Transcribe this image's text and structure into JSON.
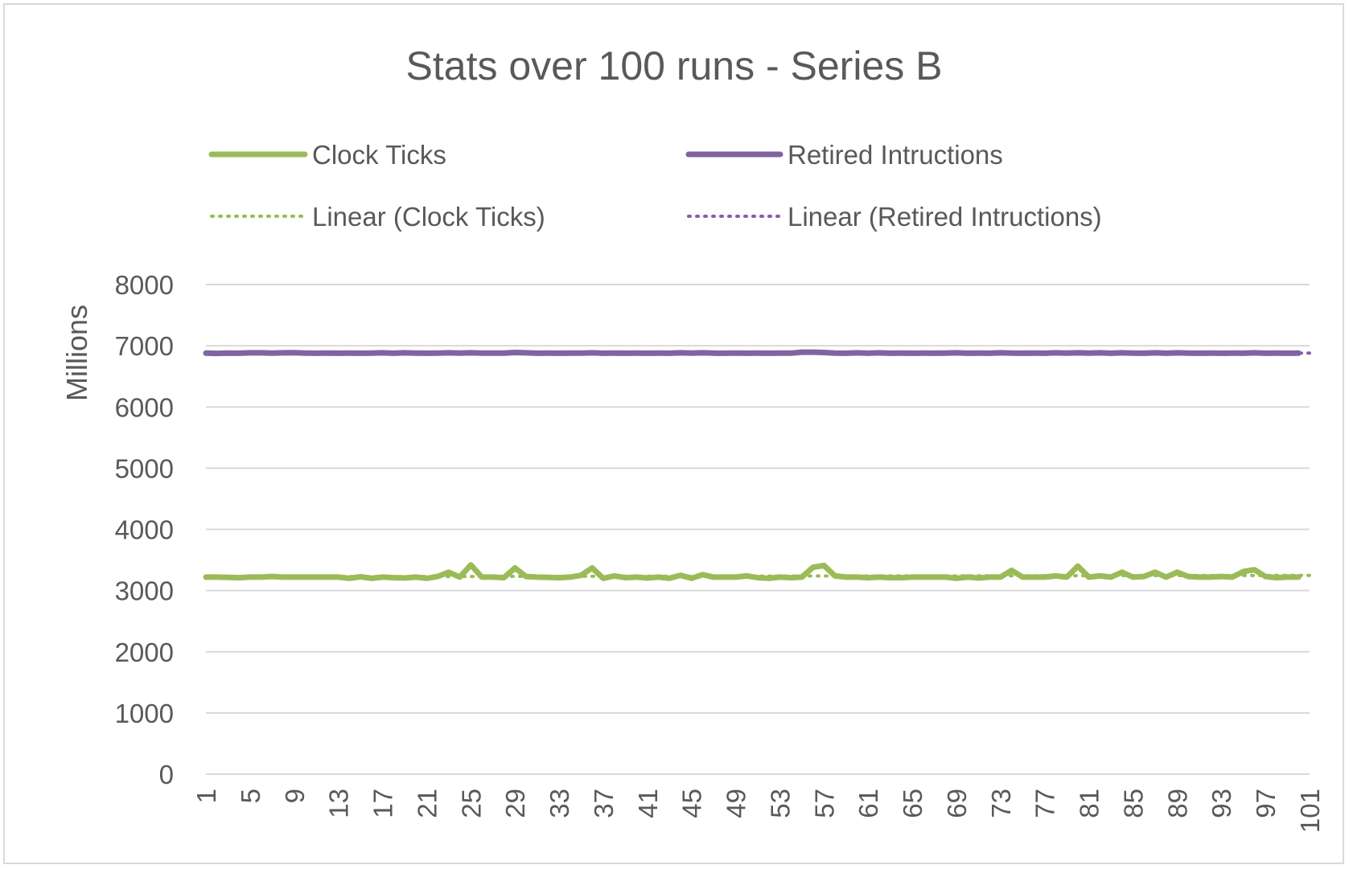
{
  "chart_data": {
    "type": "line",
    "title": "Stats over 100 runs - Series B",
    "xlabel": "",
    "ylabel": "Millions",
    "x_range": [
      1,
      101
    ],
    "ylim": [
      0,
      8000
    ],
    "y_ticks": [
      0,
      1000,
      2000,
      3000,
      4000,
      5000,
      6000,
      7000,
      8000
    ],
    "x_ticks": [
      1,
      5,
      9,
      13,
      17,
      21,
      25,
      29,
      33,
      37,
      41,
      45,
      49,
      53,
      57,
      61,
      65,
      69,
      73,
      77,
      81,
      85,
      89,
      93,
      97,
      101
    ],
    "grid": true,
    "legend_position": "top",
    "series": [
      {
        "name": "Clock Ticks",
        "color": "#9bbb59",
        "x": [
          1,
          2,
          3,
          4,
          5,
          6,
          7,
          8,
          9,
          10,
          11,
          12,
          13,
          14,
          15,
          16,
          17,
          18,
          19,
          20,
          21,
          22,
          23,
          24,
          25,
          26,
          27,
          28,
          29,
          30,
          31,
          32,
          33,
          34,
          35,
          36,
          37,
          38,
          39,
          40,
          41,
          42,
          43,
          44,
          45,
          46,
          47,
          48,
          49,
          50,
          51,
          52,
          53,
          54,
          55,
          56,
          57,
          58,
          59,
          60,
          61,
          62,
          63,
          64,
          65,
          66,
          67,
          68,
          69,
          70,
          71,
          72,
          73,
          74,
          75,
          76,
          77,
          78,
          79,
          80,
          81,
          82,
          83,
          84,
          85,
          86,
          87,
          88,
          89,
          90,
          91,
          92,
          93,
          94,
          95,
          96,
          97,
          98,
          99,
          100
        ],
        "values": [
          3220,
          3220,
          3215,
          3210,
          3220,
          3220,
          3230,
          3220,
          3220,
          3220,
          3220,
          3220,
          3220,
          3200,
          3225,
          3200,
          3220,
          3210,
          3205,
          3220,
          3200,
          3230,
          3300,
          3220,
          3420,
          3220,
          3220,
          3210,
          3370,
          3230,
          3220,
          3215,
          3210,
          3220,
          3250,
          3370,
          3200,
          3240,
          3210,
          3220,
          3205,
          3220,
          3200,
          3250,
          3200,
          3260,
          3220,
          3220,
          3220,
          3240,
          3210,
          3200,
          3220,
          3210,
          3220,
          3380,
          3410,
          3240,
          3220,
          3220,
          3210,
          3220,
          3210,
          3210,
          3220,
          3220,
          3220,
          3220,
          3200,
          3220,
          3205,
          3220,
          3220,
          3330,
          3220,
          3220,
          3220,
          3240,
          3220,
          3400,
          3220,
          3240,
          3220,
          3300,
          3220,
          3230,
          3300,
          3220,
          3300,
          3230,
          3220,
          3220,
          3230,
          3220,
          3310,
          3340,
          3230,
          3210,
          3220,
          3220
        ]
      },
      {
        "name": "Retired Intructions",
        "color": "#8064a2",
        "x": [
          1,
          2,
          3,
          4,
          5,
          6,
          7,
          8,
          9,
          10,
          11,
          12,
          13,
          14,
          15,
          16,
          17,
          18,
          19,
          20,
          21,
          22,
          23,
          24,
          25,
          26,
          27,
          28,
          29,
          30,
          31,
          32,
          33,
          34,
          35,
          36,
          37,
          38,
          39,
          40,
          41,
          42,
          43,
          44,
          45,
          46,
          47,
          48,
          49,
          50,
          51,
          52,
          53,
          54,
          55,
          56,
          57,
          58,
          59,
          60,
          61,
          62,
          63,
          64,
          65,
          66,
          67,
          68,
          69,
          70,
          71,
          72,
          73,
          74,
          75,
          76,
          77,
          78,
          79,
          80,
          81,
          82,
          83,
          84,
          85,
          86,
          87,
          88,
          89,
          90,
          91,
          92,
          93,
          94,
          95,
          96,
          97,
          98,
          99,
          100
        ],
        "values": [
          6880,
          6875,
          6880,
          6878,
          6885,
          6885,
          6880,
          6885,
          6888,
          6880,
          6878,
          6880,
          6878,
          6880,
          6878,
          6880,
          6885,
          6878,
          6885,
          6880,
          6878,
          6880,
          6885,
          6880,
          6885,
          6880,
          6880,
          6880,
          6890,
          6885,
          6878,
          6880,
          6878,
          6880,
          6880,
          6885,
          6878,
          6880,
          6878,
          6880,
          6878,
          6880,
          6878,
          6885,
          6880,
          6885,
          6880,
          6878,
          6880,
          6878,
          6880,
          6878,
          6880,
          6880,
          6895,
          6895,
          6890,
          6880,
          6878,
          6885,
          6878,
          6885,
          6878,
          6880,
          6878,
          6880,
          6878,
          6880,
          6885,
          6878,
          6880,
          6878,
          6885,
          6880,
          6878,
          6880,
          6878,
          6885,
          6880,
          6885,
          6880,
          6885,
          6878,
          6885,
          6880,
          6878,
          6885,
          6878,
          6885,
          6880,
          6878,
          6880,
          6878,
          6880,
          6878,
          6885,
          6878,
          6880,
          6878,
          6880
        ]
      },
      {
        "name": "Linear (Clock Ticks)",
        "color": "#9bbb59",
        "style": "dotted",
        "trend_of": "Clock Ticks",
        "x_range": [
          1,
          101
        ]
      },
      {
        "name": "Linear (Retired Intructions)",
        "color": "#8064a2",
        "style": "dotted",
        "trend_of": "Retired Intructions",
        "x_range": [
          1,
          101
        ]
      }
    ]
  },
  "colors": {
    "gridline": "#d9d9d9",
    "text": "#595959",
    "border": "#d9d9d9"
  }
}
